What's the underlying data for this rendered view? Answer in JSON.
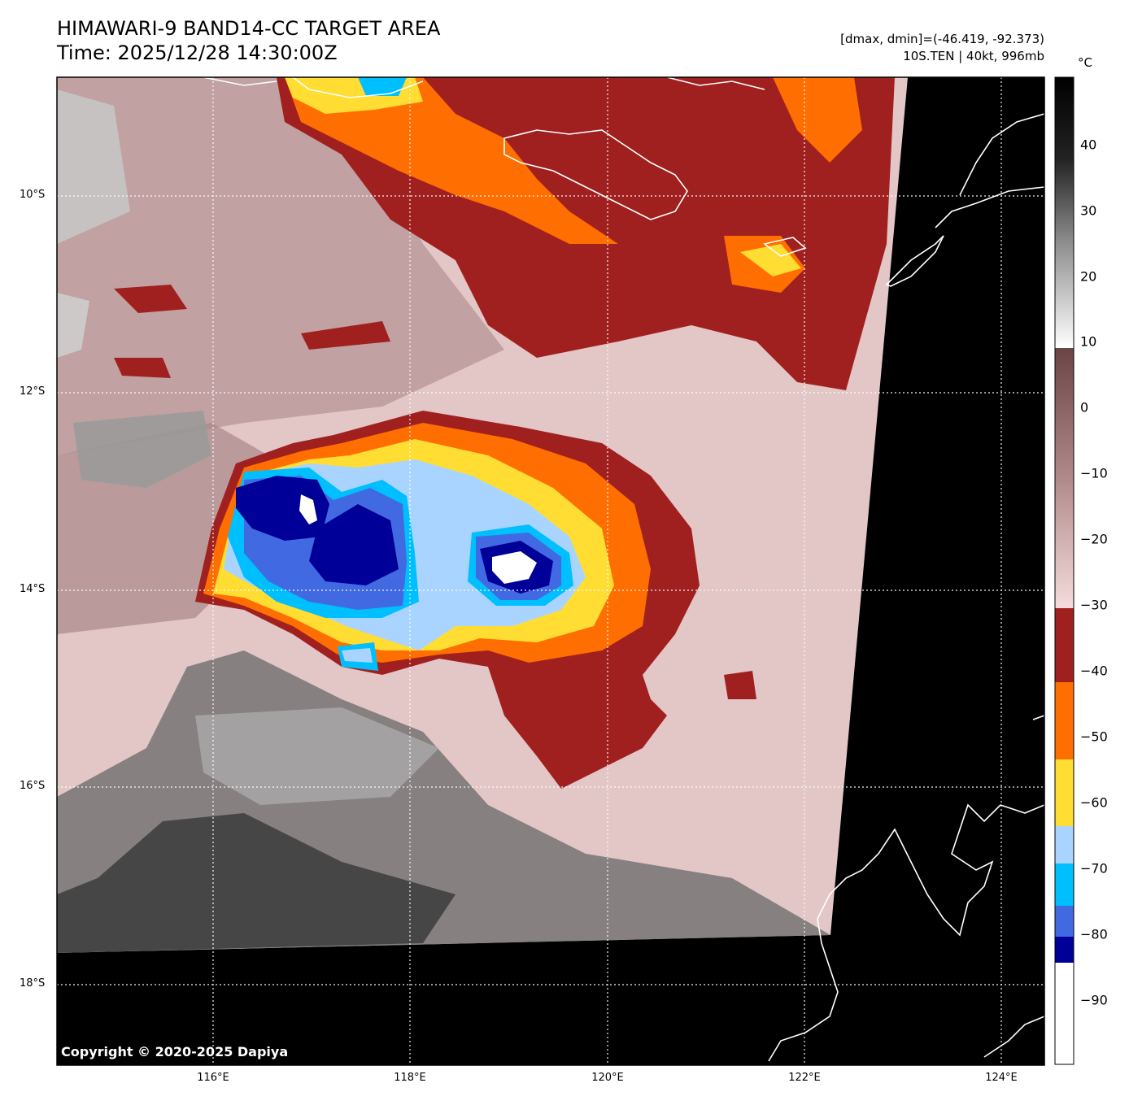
{
  "header": {
    "title": "HIMAWARI-9 BAND14-CC TARGET AREA",
    "time": "Time: 2025/12/28 14:30:00Z",
    "range": "[dmax, dmin]=(-46.419, -92.373)",
    "storm": "10S.TEN | 40kt, 996mb"
  },
  "axes": {
    "lat_labels": [
      "10°S",
      "12°S",
      "14°S",
      "16°S",
      "18°S"
    ],
    "lon_labels": [
      "116°E",
      "118°E",
      "120°E",
      "122°E",
      "124°E"
    ]
  },
  "colorbar": {
    "unit": "°C",
    "ticks": [
      "40",
      "30",
      "20",
      "10",
      "0",
      "−10",
      "−20",
      "−30",
      "−40",
      "−50",
      "−60",
      "−70",
      "−80",
      "−90"
    ],
    "bands": [
      {
        "from": 10,
        "to": 48,
        "kind": "gray"
      },
      {
        "from": -30,
        "to": 10,
        "kind": "pink-brown"
      },
      {
        "from": -30,
        "to": -41,
        "color": "#a02020"
      },
      {
        "from": -41,
        "to": -53,
        "color": "#ff6e00"
      },
      {
        "from": -53,
        "to": -63,
        "color": "#ffdd33"
      },
      {
        "from": -63,
        "to": -69,
        "color": "#a8d4ff"
      },
      {
        "from": -69,
        "to": -75,
        "color": "#00bfff"
      },
      {
        "from": -75,
        "to": -80,
        "color": "#4169e1"
      },
      {
        "from": -80,
        "to": -84,
        "color": "#000099"
      },
      {
        "from": -84,
        "to": -100,
        "color": "#ffffff"
      }
    ]
  },
  "colors": {
    "red": "#a02020",
    "orange": "#ff6e00",
    "yellow": "#ffdd33",
    "lightblue": "#a8d4ff",
    "cyan": "#00bfff",
    "royalblue": "#4169e1",
    "navy": "#000099",
    "background_cloud": "#e6c9c9",
    "no_data": "#000000"
  },
  "copyright": "Copyright © 2020-2025 Dapiya"
}
